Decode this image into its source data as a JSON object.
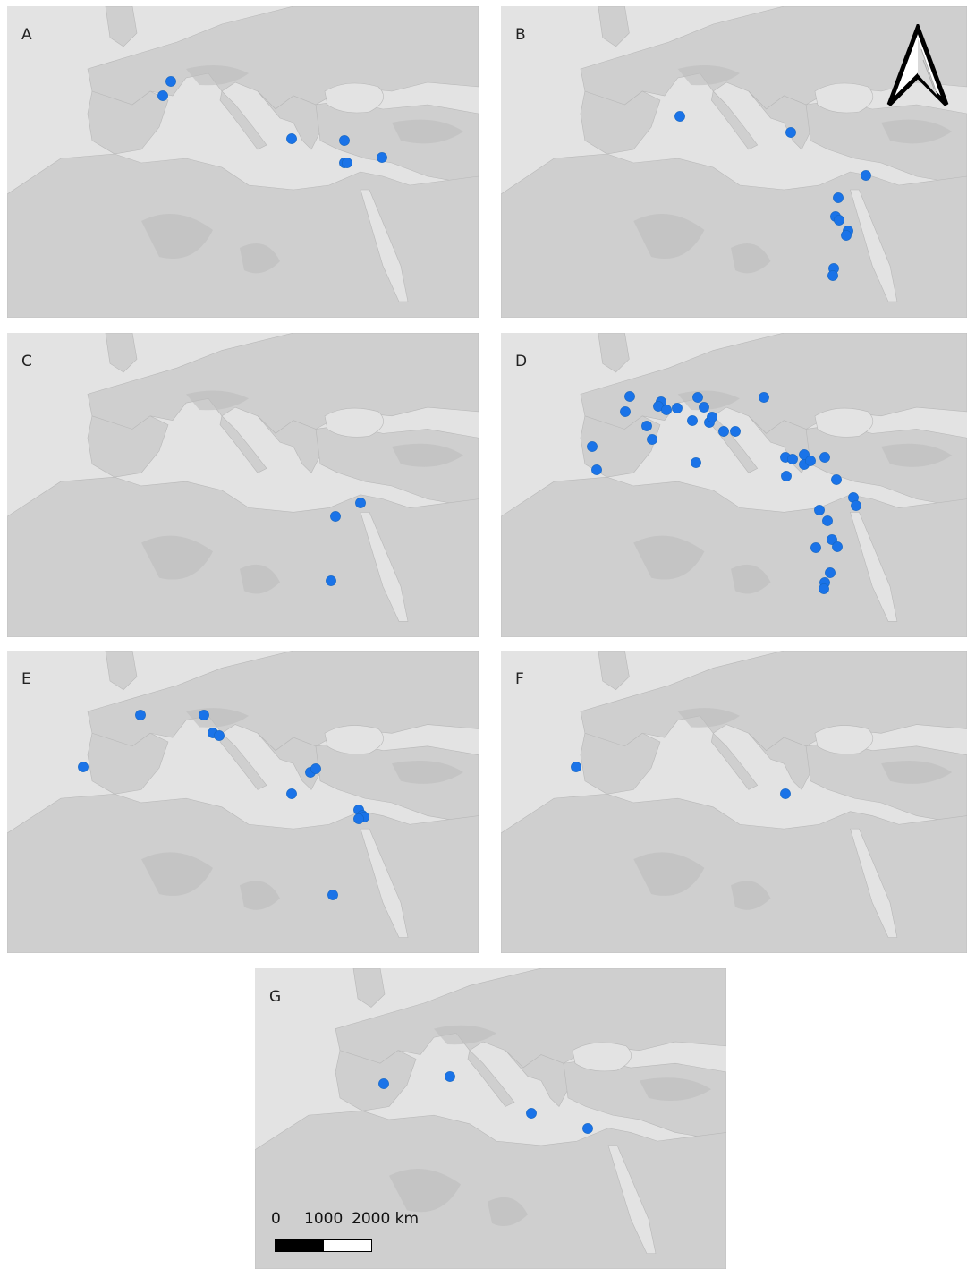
{
  "panels": [
    {
      "label": "A"
    },
    {
      "label": "B"
    },
    {
      "label": "C"
    },
    {
      "label": "D"
    },
    {
      "label": "E"
    },
    {
      "label": "F"
    },
    {
      "label": "G"
    }
  ],
  "scale_bar": {
    "zero": "0",
    "mid": "1000",
    "end": "2000 km"
  },
  "colors": {
    "point": "#1a73e8",
    "sea": "#e3e3e3",
    "land": "#cfcfcf",
    "highland": "#bdbdbd"
  },
  "icons": {
    "north_arrow": "north-arrow-icon"
  }
}
